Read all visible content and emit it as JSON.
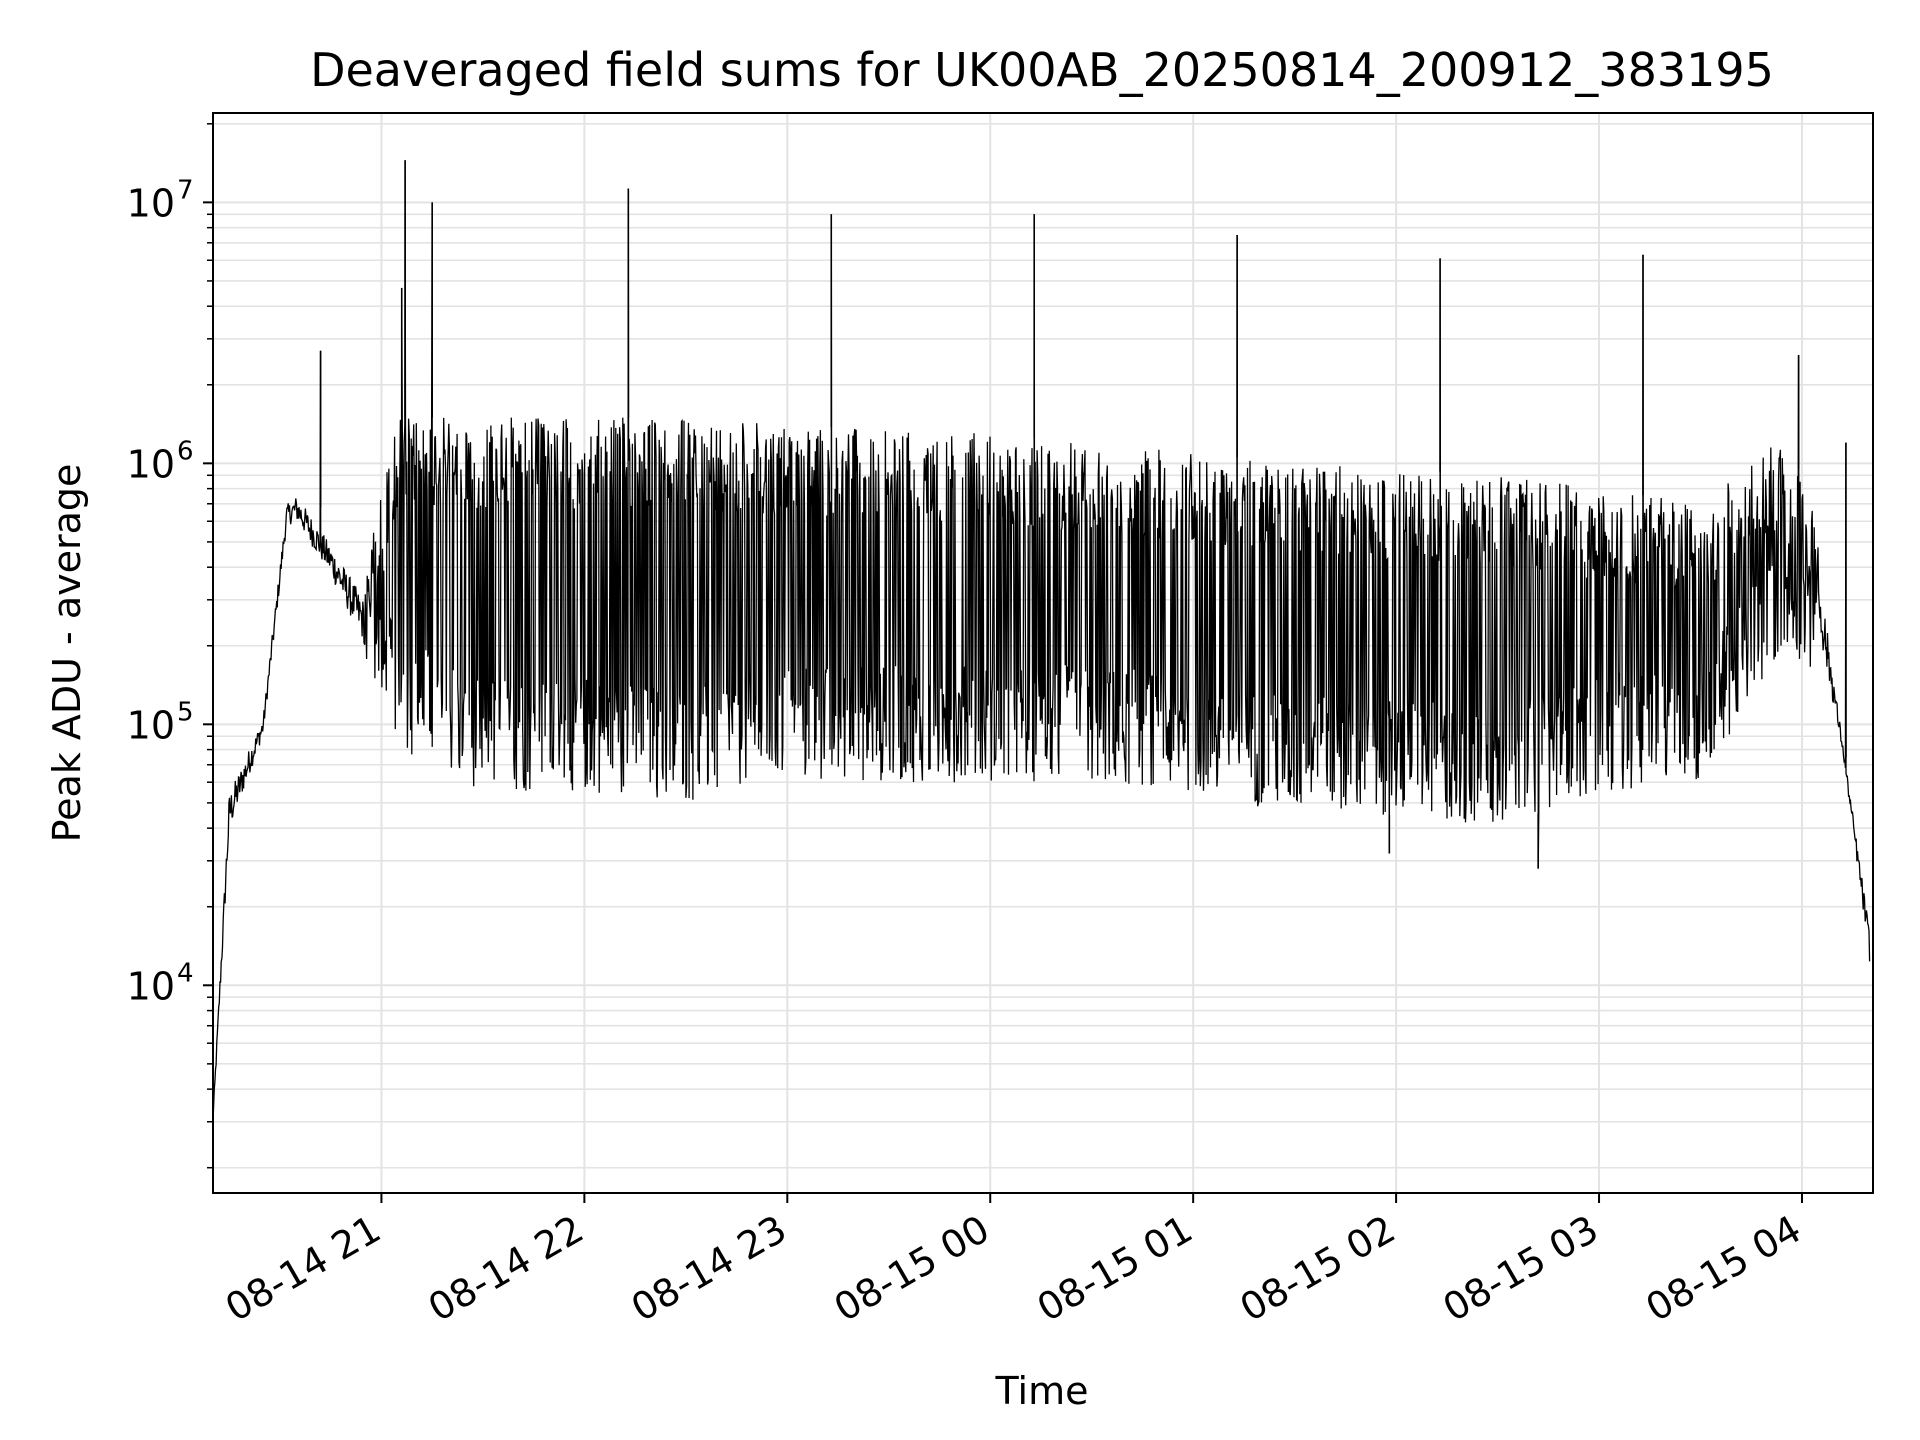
{
  "chart_data": {
    "type": "line",
    "title": "Deaveraged field sums for UK00AB_20250814_200912_383195",
    "xlabel": "Time",
    "ylabel": "Peak ADU - average",
    "yscale": "log",
    "ylim": [
      1600,
      22000000
    ],
    "xlim_hours": [
      20.17,
      4.35
    ],
    "x_ticks": [
      "08-14 21",
      "08-14 22",
      "08-14 23",
      "08-15 00",
      "08-15 01",
      "08-15 02",
      "08-15 03",
      "08-15 04"
    ],
    "y_ticks": [
      {
        "value": 10000,
        "base": "10",
        "exp": "4"
      },
      {
        "value": 100000,
        "base": "10",
        "exp": "5"
      },
      {
        "value": 1000000,
        "base": "10",
        "exp": "6"
      },
      {
        "value": 10000000,
        "base": "10",
        "exp": "7"
      }
    ],
    "grid": true,
    "line_color": "#000000",
    "series": [
      {
        "name": "",
        "envelope": [
          {
            "x": "2025-08-14 20:10",
            "low": 2500,
            "high": 3000
          },
          {
            "x": "2025-08-14 20:15",
            "low": 30000,
            "high": 70000
          },
          {
            "x": "2025-08-14 20:25",
            "low": 80000,
            "high": 120000
          },
          {
            "x": "2025-08-14 20:32",
            "low": 500000,
            "high": 800000
          },
          {
            "x": "2025-08-14 20:35",
            "low": 500000,
            "high": 900000
          },
          {
            "x": "2025-08-14 20:45",
            "low": 300000,
            "high": 600000
          },
          {
            "x": "2025-08-14 20:55",
            "low": 150000,
            "high": 400000
          },
          {
            "x": "2025-08-14 21:05",
            "low": 80000,
            "high": 1500000
          },
          {
            "x": "2025-08-14 21:30",
            "low": 55000,
            "high": 1500000
          },
          {
            "x": "2025-08-14 22:00",
            "low": 55000,
            "high": 1500000
          },
          {
            "x": "2025-08-14 22:30",
            "low": 50000,
            "high": 1500000
          },
          {
            "x": "2025-08-14 23:00",
            "low": 60000,
            "high": 1400000
          },
          {
            "x": "2025-08-14 23:30",
            "low": 60000,
            "high": 1350000
          },
          {
            "x": "2025-08-15 00:00",
            "low": 60000,
            "high": 1300000
          },
          {
            "x": "2025-08-15 00:30",
            "low": 60000,
            "high": 1200000
          },
          {
            "x": "2025-08-15 01:00",
            "low": 55000,
            "high": 1100000
          },
          {
            "x": "2025-08-15 01:30",
            "low": 45000,
            "high": 1000000
          },
          {
            "x": "2025-08-15 02:00",
            "low": 45000,
            "high": 950000
          },
          {
            "x": "2025-08-15 02:30",
            "low": 40000,
            "high": 900000
          },
          {
            "x": "2025-08-15 03:00",
            "low": 55000,
            "high": 800000
          },
          {
            "x": "2025-08-15 03:30",
            "low": 60000,
            "high": 700000
          },
          {
            "x": "2025-08-15 03:55",
            "low": 200000,
            "high": 1300000
          },
          {
            "x": "2025-08-15 04:05",
            "low": 150000,
            "high": 600000
          },
          {
            "x": "2025-08-15 04:12",
            "low": 75000,
            "high": 90000
          },
          {
            "x": "2025-08-15 04:20",
            "low": 10000,
            "high": 20000
          }
        ],
        "spikes": [
          {
            "x": "2025-08-14 20:42",
            "y": 2700000
          },
          {
            "x": "2025-08-14 21:06",
            "y": 4700000
          },
          {
            "x": "2025-08-14 21:07",
            "y": 14500000
          },
          {
            "x": "2025-08-14 21:15",
            "y": 10000000
          },
          {
            "x": "2025-08-14 22:13",
            "y": 11300000
          },
          {
            "x": "2025-08-14 23:13",
            "y": 9000000
          },
          {
            "x": "2025-08-15 00:13",
            "y": 9000000
          },
          {
            "x": "2025-08-15 01:13",
            "y": 7500000
          },
          {
            "x": "2025-08-15 02:13",
            "y": 6100000
          },
          {
            "x": "2025-08-15 03:13",
            "y": 6300000
          },
          {
            "x": "2025-08-15 03:59",
            "y": 2600000
          },
          {
            "x": "2025-08-15 04:13",
            "y": 1200000
          }
        ],
        "dips": [
          {
            "x": "2025-08-15 01:58",
            "y": 32000
          },
          {
            "x": "2025-08-15 02:42",
            "y": 28000
          }
        ]
      }
    ]
  }
}
